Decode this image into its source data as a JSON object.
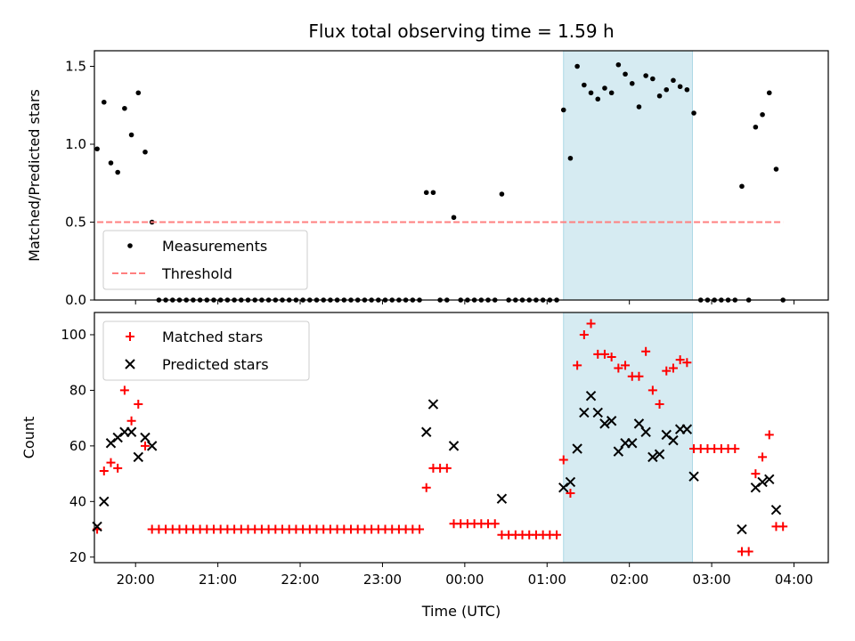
{
  "chart_data": {
    "title": "Flux total observing time = 1.59 h",
    "xlabel": "Time (UTC)",
    "x_ticks": [
      "20:00",
      "21:00",
      "22:00",
      "23:00",
      "00:00",
      "01:00",
      "02:00",
      "03:00",
      "04:00"
    ],
    "highlight": {
      "start": "01:12",
      "end": "02:46",
      "color": "#add8e6"
    },
    "top": {
      "type": "scatter",
      "ylabel": "Matched/Predicted stars",
      "ylim": [
        0,
        1.6
      ],
      "yticks": [
        "0.0",
        "0.5",
        "1.0",
        "1.5"
      ],
      "legend_placement": "lower-left",
      "series": [
        {
          "name": "Measurements",
          "color": "#000000",
          "marker": "dot",
          "points": [
            [
              "19:32",
              0.97
            ],
            [
              "19:37",
              1.27
            ],
            [
              "19:42",
              0.88
            ],
            [
              "19:47",
              0.82
            ],
            [
              "19:52",
              1.23
            ],
            [
              "19:57",
              1.06
            ],
            [
              "20:02",
              1.33
            ],
            [
              "20:07",
              0.95
            ],
            [
              "20:12",
              0.5
            ],
            [
              "20:17",
              0
            ],
            [
              "20:22",
              0
            ],
            [
              "20:27",
              0
            ],
            [
              "20:32",
              0
            ],
            [
              "20:37",
              0
            ],
            [
              "20:42",
              0
            ],
            [
              "20:47",
              0
            ],
            [
              "20:52",
              0
            ],
            [
              "20:57",
              0
            ],
            [
              "21:02",
              0
            ],
            [
              "21:07",
              0
            ],
            [
              "21:12",
              0
            ],
            [
              "21:17",
              0
            ],
            [
              "21:22",
              0
            ],
            [
              "21:27",
              0
            ],
            [
              "21:32",
              0
            ],
            [
              "21:37",
              0
            ],
            [
              "21:42",
              0
            ],
            [
              "21:47",
              0
            ],
            [
              "21:52",
              0
            ],
            [
              "21:57",
              0
            ],
            [
              "22:02",
              0
            ],
            [
              "22:07",
              0
            ],
            [
              "22:12",
              0
            ],
            [
              "22:17",
              0
            ],
            [
              "22:22",
              0
            ],
            [
              "22:27",
              0
            ],
            [
              "22:32",
              0
            ],
            [
              "22:37",
              0
            ],
            [
              "22:42",
              0
            ],
            [
              "22:47",
              0
            ],
            [
              "22:52",
              0
            ],
            [
              "22:57",
              0
            ],
            [
              "23:02",
              0
            ],
            [
              "23:07",
              0
            ],
            [
              "23:12",
              0
            ],
            [
              "23:17",
              0
            ],
            [
              "23:22",
              0
            ],
            [
              "23:27",
              0
            ],
            [
              "23:32",
              0.69
            ],
            [
              "23:37",
              0.69
            ],
            [
              "23:42",
              0
            ],
            [
              "23:47",
              0
            ],
            [
              "23:52",
              0.53
            ],
            [
              "23:57",
              0
            ],
            [
              "00:02",
              0
            ],
            [
              "00:07",
              0
            ],
            [
              "00:12",
              0
            ],
            [
              "00:17",
              0
            ],
            [
              "00:22",
              0
            ],
            [
              "00:27",
              0.68
            ],
            [
              "00:32",
              0
            ],
            [
              "00:37",
              0
            ],
            [
              "00:42",
              0
            ],
            [
              "00:47",
              0
            ],
            [
              "00:52",
              0
            ],
            [
              "00:57",
              0
            ],
            [
              "01:02",
              0
            ],
            [
              "01:07",
              0
            ],
            [
              "01:12",
              1.22
            ],
            [
              "01:17",
              0.91
            ],
            [
              "01:22",
              1.5
            ],
            [
              "01:27",
              1.38
            ],
            [
              "01:32",
              1.33
            ],
            [
              "01:37",
              1.29
            ],
            [
              "01:42",
              1.36
            ],
            [
              "01:47",
              1.33
            ],
            [
              "01:52",
              1.51
            ],
            [
              "01:57",
              1.45
            ],
            [
              "02:02",
              1.39
            ],
            [
              "02:07",
              1.24
            ],
            [
              "02:12",
              1.44
            ],
            [
              "02:17",
              1.42
            ],
            [
              "02:22",
              1.31
            ],
            [
              "02:27",
              1.35
            ],
            [
              "02:32",
              1.41
            ],
            [
              "02:37",
              1.37
            ],
            [
              "02:42",
              1.35
            ],
            [
              "02:47",
              1.2
            ],
            [
              "02:52",
              0
            ],
            [
              "02:57",
              0
            ],
            [
              "03:02",
              0
            ],
            [
              "03:07",
              0
            ],
            [
              "03:12",
              0
            ],
            [
              "03:17",
              0
            ],
            [
              "03:22",
              0.73
            ],
            [
              "03:27",
              0
            ],
            [
              "03:32",
              1.11
            ],
            [
              "03:37",
              1.19
            ],
            [
              "03:42",
              1.33
            ],
            [
              "03:47",
              0.84
            ],
            [
              "03:52",
              0
            ]
          ]
        },
        {
          "name": "Threshold",
          "color": "#ff7f7f",
          "style": "dashed",
          "points": [
            [
              "19:32",
              0.5
            ],
            [
              "03:52",
              0.5
            ]
          ]
        }
      ]
    },
    "bottom": {
      "type": "scatter",
      "ylabel": "Count",
      "ylim": [
        18,
        108
      ],
      "yticks": [
        "20",
        "40",
        "60",
        "80",
        "100"
      ],
      "legend_placement": "upper-left",
      "series": [
        {
          "name": "Matched stars",
          "color": "#ff0000",
          "marker": "plus",
          "points": [
            [
              "19:32",
              30
            ],
            [
              "19:37",
              51
            ],
            [
              "19:42",
              54
            ],
            [
              "19:47",
              52
            ],
            [
              "19:52",
              80
            ],
            [
              "19:57",
              69
            ],
            [
              "20:02",
              75
            ],
            [
              "20:07",
              60
            ],
            [
              "20:12",
              30
            ],
            [
              "20:17",
              30
            ],
            [
              "20:22",
              30
            ],
            [
              "20:27",
              30
            ],
            [
              "20:32",
              30
            ],
            [
              "20:37",
              30
            ],
            [
              "20:42",
              30
            ],
            [
              "20:47",
              30
            ],
            [
              "20:52",
              30
            ],
            [
              "20:57",
              30
            ],
            [
              "21:02",
              30
            ],
            [
              "21:07",
              30
            ],
            [
              "21:12",
              30
            ],
            [
              "21:17",
              30
            ],
            [
              "21:22",
              30
            ],
            [
              "21:27",
              30
            ],
            [
              "21:32",
              30
            ],
            [
              "21:37",
              30
            ],
            [
              "21:42",
              30
            ],
            [
              "21:47",
              30
            ],
            [
              "21:52",
              30
            ],
            [
              "21:57",
              30
            ],
            [
              "22:02",
              30
            ],
            [
              "22:07",
              30
            ],
            [
              "22:12",
              30
            ],
            [
              "22:17",
              30
            ],
            [
              "22:22",
              30
            ],
            [
              "22:27",
              30
            ],
            [
              "22:32",
              30
            ],
            [
              "22:37",
              30
            ],
            [
              "22:42",
              30
            ],
            [
              "22:47",
              30
            ],
            [
              "22:52",
              30
            ],
            [
              "22:57",
              30
            ],
            [
              "23:02",
              30
            ],
            [
              "23:07",
              30
            ],
            [
              "23:12",
              30
            ],
            [
              "23:17",
              30
            ],
            [
              "23:22",
              30
            ],
            [
              "23:27",
              30
            ],
            [
              "23:32",
              45
            ],
            [
              "23:37",
              52
            ],
            [
              "23:42",
              52
            ],
            [
              "23:47",
              52
            ],
            [
              "23:52",
              32
            ],
            [
              "23:57",
              32
            ],
            [
              "00:02",
              32
            ],
            [
              "00:07",
              32
            ],
            [
              "00:12",
              32
            ],
            [
              "00:17",
              32
            ],
            [
              "00:22",
              32
            ],
            [
              "00:27",
              28
            ],
            [
              "00:32",
              28
            ],
            [
              "00:37",
              28
            ],
            [
              "00:42",
              28
            ],
            [
              "00:47",
              28
            ],
            [
              "00:52",
              28
            ],
            [
              "00:57",
              28
            ],
            [
              "01:02",
              28
            ],
            [
              "01:07",
              28
            ],
            [
              "01:12",
              55
            ],
            [
              "01:17",
              43
            ],
            [
              "01:22",
              89
            ],
            [
              "01:27",
              100
            ],
            [
              "01:32",
              104
            ],
            [
              "01:37",
              93
            ],
            [
              "01:42",
              93
            ],
            [
              "01:47",
              92
            ],
            [
              "01:52",
              88
            ],
            [
              "01:57",
              89
            ],
            [
              "02:02",
              85
            ],
            [
              "02:07",
              85
            ],
            [
              "02:12",
              94
            ],
            [
              "02:17",
              80
            ],
            [
              "02:22",
              75
            ],
            [
              "02:27",
              87
            ],
            [
              "02:32",
              88
            ],
            [
              "02:37",
              91
            ],
            [
              "02:42",
              90
            ],
            [
              "02:47",
              59
            ],
            [
              "02:52",
              59
            ],
            [
              "02:57",
              59
            ],
            [
              "03:02",
              59
            ],
            [
              "03:07",
              59
            ],
            [
              "03:12",
              59
            ],
            [
              "03:17",
              59
            ],
            [
              "03:22",
              22
            ],
            [
              "03:27",
              22
            ],
            [
              "03:32",
              50
            ],
            [
              "03:37",
              56
            ],
            [
              "03:42",
              64
            ],
            [
              "03:47",
              31
            ],
            [
              "03:52",
              31
            ]
          ]
        },
        {
          "name": "Predicted stars",
          "color": "#000000",
          "marker": "x",
          "points": [
            [
              "19:32",
              31
            ],
            [
              "19:37",
              40
            ],
            [
              "19:42",
              61
            ],
            [
              "19:47",
              63
            ],
            [
              "19:52",
              65
            ],
            [
              "19:57",
              65
            ],
            [
              "20:02",
              56
            ],
            [
              "20:07",
              63
            ],
            [
              "20:12",
              60
            ],
            [
              "23:32",
              65
            ],
            [
              "23:37",
              75
            ],
            [
              "23:52",
              60
            ],
            [
              "00:27",
              41
            ],
            [
              "01:12",
              45
            ],
            [
              "01:17",
              47
            ],
            [
              "01:22",
              59
            ],
            [
              "01:27",
              72
            ],
            [
              "01:32",
              78
            ],
            [
              "01:37",
              72
            ],
            [
              "01:42",
              68
            ],
            [
              "01:47",
              69
            ],
            [
              "01:52",
              58
            ],
            [
              "01:57",
              61
            ],
            [
              "02:02",
              61
            ],
            [
              "02:07",
              68
            ],
            [
              "02:12",
              65
            ],
            [
              "02:17",
              56
            ],
            [
              "02:22",
              57
            ],
            [
              "02:27",
              64
            ],
            [
              "02:32",
              62
            ],
            [
              "02:37",
              66
            ],
            [
              "02:42",
              66
            ],
            [
              "02:47",
              49
            ],
            [
              "03:22",
              30
            ],
            [
              "03:32",
              45
            ],
            [
              "03:37",
              47
            ],
            [
              "03:42",
              48
            ],
            [
              "03:47",
              37
            ]
          ]
        }
      ]
    }
  }
}
